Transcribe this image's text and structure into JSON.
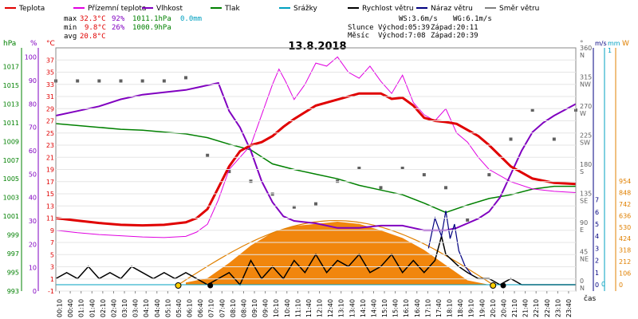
{
  "chart_data": {
    "type": "line",
    "title": "13.8.2018",
    "legend": [
      {
        "name": "Teplota",
        "color": "#e00000"
      },
      {
        "name": "Přízemní teplota",
        "color": "#e000e0"
      },
      {
        "name": "Vlhkost",
        "color": "#8000c0"
      },
      {
        "name": "Tlak",
        "color": "#008000"
      },
      {
        "name": "Srážky",
        "color": "#00a0c0"
      },
      {
        "name": "Rychlost větru",
        "color": "#000000"
      },
      {
        "name": "Náraz větru",
        "color": "#000080"
      },
      {
        "name": "Směr větru",
        "color": "#808080"
      }
    ],
    "stats": {
      "max": {
        "label": "max",
        "temp": "32.3°C",
        "hum": "92%",
        "press": "1011.1hPa",
        "rain": "0.0mm"
      },
      "min": {
        "label": "min",
        "temp": "9.8°C",
        "hum": "26%",
        "press": "1000.9hPa"
      },
      "avg": {
        "label": "avg",
        "temp": "20.8°C"
      },
      "wind": {
        "ws": "WS:3.6m/s",
        "wg": "WG:6.1m/s"
      },
      "sun": {
        "label": "Slunce",
        "rise": "Východ:05:39",
        "set": "Západ:20:11"
      },
      "moon": {
        "label": "Měsíc",
        "rise": "Východ:7:08",
        "set": "Západ:20:39"
      }
    },
    "axes_left": {
      "pressure": {
        "unit": "hPa",
        "range": [
          993,
          1019
        ],
        "ticks": [
          "993",
          "995",
          "997",
          "999",
          "1001",
          "1003",
          "1005",
          "1007",
          "1009",
          "1011",
          "1013",
          "1015",
          "1017"
        ]
      },
      "humidity": {
        "unit": "%",
        "range": [
          0,
          104
        ],
        "ticks": [
          "0",
          "10",
          "20",
          "30",
          "40",
          "50",
          "60",
          "70",
          "80",
          "90",
          "100"
        ]
      },
      "temperature": {
        "unit": "°C",
        "range": [
          -1,
          39
        ],
        "ticks": [
          "-1",
          "1",
          "3",
          "5",
          "7",
          "9",
          "11",
          "13",
          "15",
          "17",
          "19",
          "21",
          "23",
          "25",
          "27",
          "29",
          "31",
          "33",
          "35",
          "37"
        ]
      }
    },
    "axes_right": {
      "direction": {
        "unit": "°",
        "ticks": [
          {
            "v": "0",
            "d": "N"
          },
          {
            "v": "45",
            "d": "NE"
          },
          {
            "v": "90",
            "d": "E"
          },
          {
            "v": "135",
            "d": "SE"
          },
          {
            "v": "180",
            "d": "S"
          },
          {
            "v": "225",
            "d": "SW"
          },
          {
            "v": "270",
            "d": "W"
          },
          {
            "v": "315",
            "d": "NW"
          },
          {
            "v": "360",
            "d": "N"
          }
        ]
      },
      "wind": {
        "unit": "m/s",
        "ticks": [
          "0",
          "1",
          "2",
          "3",
          "4",
          "5",
          "6",
          "7"
        ]
      },
      "rain": {
        "unit": "mm",
        "top": "1",
        "bottom": "0"
      },
      "radiation": {
        "unit": "W",
        "ticks": [
          "0",
          "106",
          "212",
          "318",
          "424",
          "530",
          "636",
          "742",
          "848",
          "954"
        ]
      }
    },
    "xlabel": "čas",
    "x_ticks": [
      "00:10",
      "00:40",
      "01:10",
      "01:40",
      "02:10",
      "02:40",
      "03:10",
      "03:40",
      "04:10",
      "04:40",
      "05:10",
      "05:40",
      "06:10",
      "06:40",
      "07:10",
      "07:40",
      "08:10",
      "08:40",
      "09:10",
      "09:40",
      "10:10",
      "10:40",
      "11:10",
      "11:40",
      "12:10",
      "12:40",
      "13:10",
      "13:40",
      "14:10",
      "14:40",
      "15:10",
      "15:40",
      "16:10",
      "16:40",
      "17:10",
      "17:40",
      "18:10",
      "18:40",
      "19:10",
      "19:40",
      "20:10",
      "20:40",
      "21:10",
      "21:40",
      "22:10",
      "22:40",
      "23:10",
      "23:40"
    ],
    "series": [
      {
        "name": "Teplota",
        "unit": "°C",
        "x_hours": [
          0,
          1,
          2,
          3,
          4,
          5,
          6,
          6.5,
          7,
          7.5,
          8,
          8.5,
          9,
          9.5,
          10,
          10.5,
          11,
          12,
          13,
          14,
          15,
          15.5,
          16,
          16.5,
          17,
          17.5,
          18,
          18.5,
          19,
          19.5,
          20,
          21,
          22,
          23,
          24
        ],
        "values": [
          11.0,
          10.6,
          10.2,
          9.9,
          9.8,
          9.9,
          10.3,
          11.0,
          12.5,
          16.0,
          19.5,
          22.0,
          23.0,
          23.5,
          24.5,
          26.0,
          27.3,
          29.5,
          30.5,
          31.5,
          31.5,
          30.6,
          30.8,
          29.5,
          27.5,
          27.0,
          26.8,
          26.5,
          25.5,
          24.5,
          23.0,
          19.5,
          17.5,
          16.8,
          16.6
        ]
      },
      {
        "name": "Přízemní teplota",
        "unit": "°C",
        "x_hours": [
          0,
          1,
          2,
          3,
          4,
          5,
          6,
          6.5,
          7,
          7.5,
          8,
          8.5,
          9,
          9.5,
          10,
          10.3,
          10.6,
          11,
          11.5,
          12,
          12.5,
          13,
          13.5,
          14,
          14.5,
          15,
          15.5,
          16,
          16.5,
          17,
          17.5,
          18,
          18.5,
          19,
          19.5,
          20,
          21,
          22,
          23,
          24
        ],
        "values": [
          9.0,
          8.6,
          8.3,
          8.1,
          7.9,
          7.8,
          8.0,
          8.7,
          10.0,
          14.0,
          19.0,
          21.0,
          23.0,
          28.0,
          33.0,
          35.5,
          33.5,
          30.5,
          33.0,
          36.5,
          36.0,
          37.5,
          35.0,
          34.0,
          36.0,
          33.5,
          31.5,
          34.5,
          30.0,
          28.0,
          27.0,
          29.0,
          25.0,
          23.5,
          21.0,
          19.0,
          17.0,
          15.8,
          15.4,
          15.2
        ]
      },
      {
        "name": "Vlhkost",
        "unit": "%",
        "x_hours": [
          0,
          1,
          2,
          3,
          4,
          5,
          6,
          6.5,
          7,
          7.5,
          8,
          8.5,
          9,
          9.5,
          10,
          10.5,
          11,
          12,
          13,
          14,
          15,
          16,
          17,
          17.5,
          18,
          18.5,
          19,
          19.5,
          20,
          20.5,
          21,
          21.5,
          22,
          22.5,
          23,
          24
        ],
        "values": [
          75,
          77,
          79,
          82,
          84,
          85,
          86,
          87,
          88,
          89,
          77,
          70,
          60,
          47,
          38,
          32,
          30,
          29,
          27,
          27,
          28,
          28,
          26,
          26,
          26,
          27,
          29,
          31,
          34,
          40,
          50,
          60,
          68,
          72,
          75,
          80
        ]
      },
      {
        "name": "Tlak",
        "unit": "hPa",
        "x_hours": [
          0,
          1,
          2,
          3,
          4,
          5,
          6,
          7,
          8,
          9,
          10,
          11,
          12,
          13,
          14,
          15,
          16,
          17,
          18,
          19,
          20,
          21,
          22,
          23,
          24
        ],
        "values": [
          1010.9,
          1010.7,
          1010.5,
          1010.3,
          1010.2,
          1010.0,
          1009.8,
          1009.4,
          1008.7,
          1008.1,
          1006.6,
          1006.0,
          1005.5,
          1005.0,
          1004.3,
          1003.8,
          1003.3,
          1002.4,
          1001.4,
          1002.2,
          1002.9,
          1003.3,
          1003.9,
          1004.2,
          1004.2
        ]
      },
      {
        "name": "Srážky",
        "unit": "mm",
        "x_hours": [
          0,
          24
        ],
        "values": [
          0.0,
          0.0
        ]
      },
      {
        "name": "Rychlost větru",
        "unit": "m/s",
        "x_hours": [
          0,
          0.5,
          1,
          1.5,
          2,
          2.5,
          3,
          3.5,
          4,
          4.5,
          5,
          5.5,
          6,
          6.5,
          7,
          7.5,
          8,
          8.5,
          9,
          9.5,
          10,
          10.5,
          11,
          11.5,
          12,
          12.5,
          13,
          13.5,
          14,
          14.5,
          15,
          15.5,
          16,
          16.5,
          17,
          17.5,
          17.8,
          18,
          18.3,
          18.6,
          19,
          19.5,
          20,
          20.5,
          21,
          21.5,
          22,
          23,
          24
        ],
        "values": [
          0.5,
          1.0,
          0.5,
          1.5,
          0.5,
          1.0,
          0.5,
          1.5,
          1.0,
          0.5,
          1.0,
          0.5,
          1.0,
          0.5,
          0.0,
          0.5,
          1.0,
          0.0,
          2.0,
          0.5,
          1.5,
          0.5,
          2.0,
          1.0,
          2.5,
          1.0,
          2.0,
          1.5,
          2.5,
          1.0,
          1.5,
          2.5,
          1.0,
          2.0,
          1.0,
          2.0,
          4.0,
          2.5,
          2.0,
          1.5,
          1.0,
          0.5,
          0.5,
          0.0,
          0.5,
          0.0,
          0.0,
          0.0,
          0.0
        ]
      },
      {
        "name": "Náraz větru",
        "unit": "m/s",
        "x_hours": [
          17.2,
          17.5,
          17.8,
          18.0,
          18.2,
          18.4,
          18.6,
          18.9,
          19.2
        ],
        "values": [
          3.0,
          5.5,
          4.0,
          6.1,
          3.8,
          5.0,
          2.8,
          1.5,
          0.8
        ]
      },
      {
        "name": "Sluneční záření",
        "unit": "W",
        "x_hours": [
          6.0,
          7.0,
          8.0,
          9.0,
          10.0,
          11.0,
          12.0,
          13.0,
          14.0,
          15.0,
          16.0,
          17.0,
          18.0,
          19.0,
          20.0
        ],
        "values": [
          20,
          60,
          200,
          360,
          480,
          540,
          560,
          580,
          560,
          500,
          430,
          320,
          180,
          40,
          0
        ]
      },
      {
        "name": "Směr větru",
        "unit": "°",
        "x_hours": [
          0,
          1,
          2,
          3,
          4,
          5,
          6,
          7,
          8,
          9,
          10,
          11,
          12,
          13,
          14,
          15,
          16,
          17,
          18,
          19,
          20,
          21,
          22,
          23,
          24
        ],
        "values": [
          315,
          315,
          315,
          315,
          315,
          315,
          320,
          200,
          175,
          160,
          140,
          120,
          125,
          160,
          180,
          150,
          180,
          170,
          150,
          100,
          170,
          225,
          270,
          225,
          270
        ]
      }
    ]
  }
}
